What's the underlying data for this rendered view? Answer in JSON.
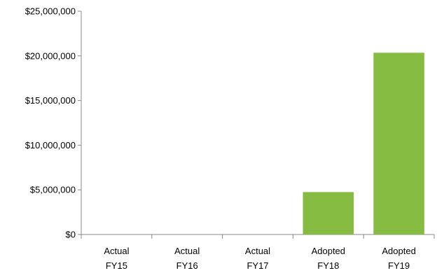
{
  "chart_data": {
    "type": "bar",
    "categories": [
      [
        "Actual",
        "FY15"
      ],
      [
        "Actual",
        "FY16"
      ],
      [
        "Actual",
        "FY17"
      ],
      [
        "Adopted",
        "FY18"
      ],
      [
        "Adopted",
        "FY19"
      ]
    ],
    "values": [
      0,
      0,
      0,
      4750000,
      20350000
    ],
    "ylim": [
      0,
      25000000
    ],
    "yticks": [
      0,
      5000000,
      10000000,
      15000000,
      20000000,
      25000000
    ],
    "ytick_labels": [
      "$0",
      "$5,000,000",
      "$10,000,000",
      "$15,000,000",
      "$20,000,000",
      "$25,000,000"
    ],
    "title": "",
    "xlabel": "",
    "ylabel": "",
    "grid": false,
    "legend": "none",
    "colors": {
      "bar": "#86bc42",
      "axis": "#888888"
    }
  }
}
